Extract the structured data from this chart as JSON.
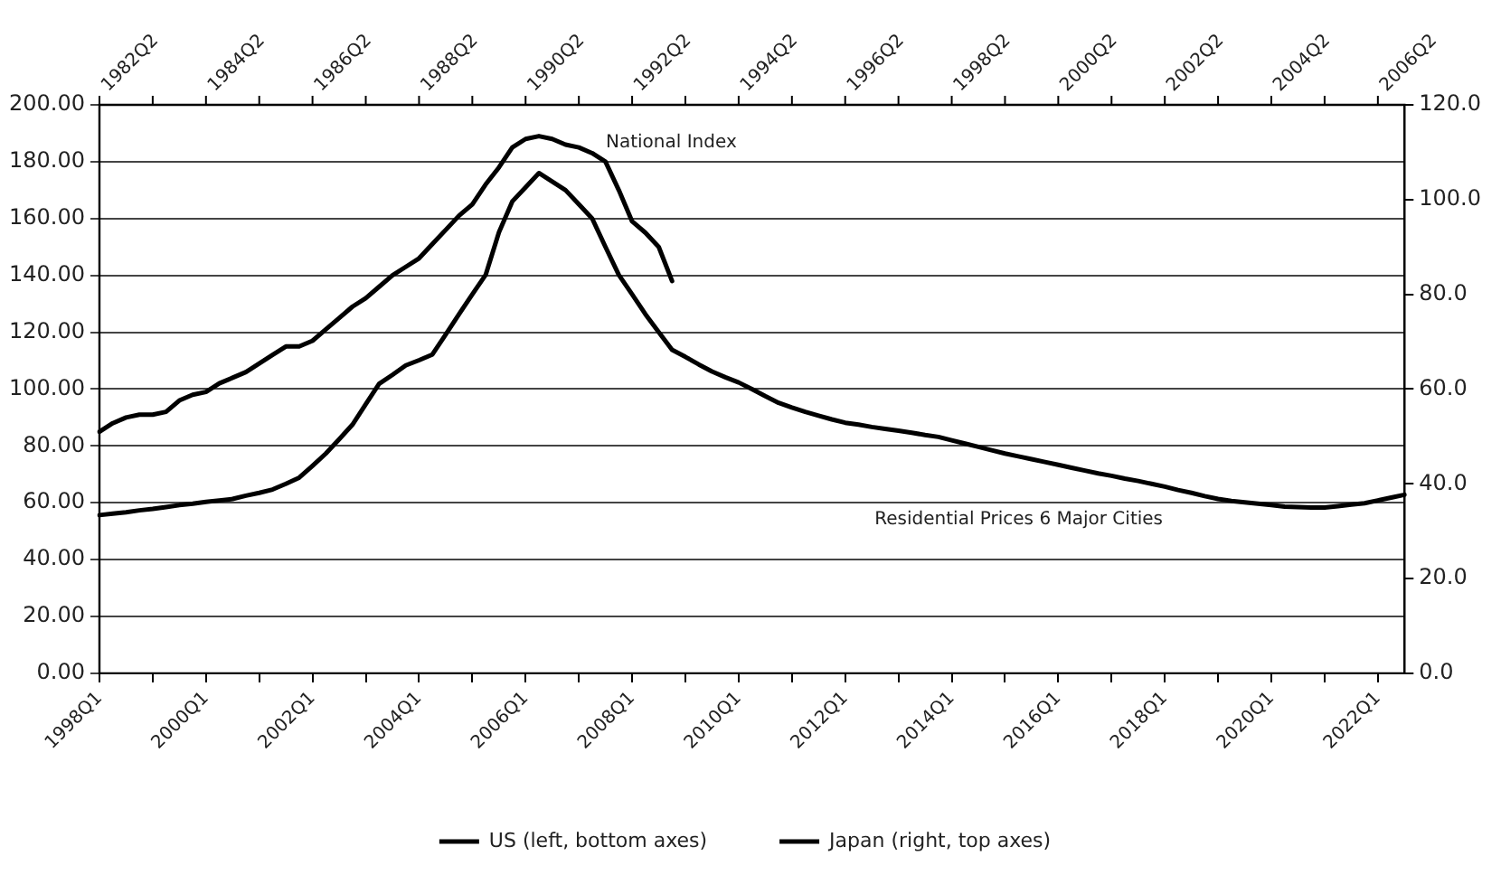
{
  "chart_data": {
    "type": "line",
    "grid": "y",
    "legend": "bottom",
    "marker": "none",
    "line_style": "solid",
    "categories": [
      "1998Q1",
      null,
      null,
      null,
      null,
      null,
      null,
      null,
      "2000Q1",
      null,
      null,
      null,
      null,
      null,
      null,
      null,
      "2002Q1",
      null,
      null,
      null,
      null,
      null,
      null,
      null,
      "2004Q1",
      null,
      null,
      null,
      null,
      null,
      null,
      null,
      "2006Q1",
      null,
      null,
      null,
      null,
      null,
      null,
      null,
      "2008Q1",
      null,
      null,
      null,
      null,
      null,
      null,
      null,
      "2010Q1",
      null,
      null,
      null,
      null,
      null,
      null,
      null,
      "2012Q1",
      null,
      null,
      null,
      null,
      null,
      null,
      null,
      "2014Q1",
      null,
      null,
      null,
      null,
      null,
      null,
      null,
      "2016Q1",
      null,
      null,
      null,
      null,
      null,
      null,
      null,
      "2018Q1",
      null,
      null,
      null,
      null,
      null,
      null,
      null,
      "2020Q1",
      null,
      null,
      null,
      null,
      null,
      null,
      null,
      "2022Q1",
      null,
      null
    ],
    "ylim": [
      0,
      200
    ],
    "yticks": [
      {
        "value": 0,
        "label": "0.00"
      },
      {
        "value": 20,
        "label": "20.00"
      },
      {
        "value": 40,
        "label": "40.00"
      },
      {
        "value": 60,
        "label": "60.00"
      },
      {
        "value": 80,
        "label": "80.00"
      },
      {
        "value": 100,
        "label": "100.00"
      },
      {
        "value": 120,
        "label": "120.00"
      },
      {
        "value": 140,
        "label": "140.00"
      },
      {
        "value": 160,
        "label": "160.00"
      },
      {
        "value": 180,
        "label": "180.00"
      },
      {
        "value": 200,
        "label": "200.00"
      }
    ],
    "y2lim": [
      0,
      120
    ],
    "y2ticks": [
      {
        "value": 0,
        "label": "0.0"
      },
      {
        "value": 20,
        "label": "20.0"
      },
      {
        "value": 40,
        "label": "40.0"
      },
      {
        "value": 60,
        "label": "60.0"
      },
      {
        "value": 80,
        "label": "80.0"
      },
      {
        "value": 100,
        "label": "100.0"
      },
      {
        "value": 120,
        "label": "120.0"
      }
    ],
    "series": [
      {
        "name": "US (left, bottom axes)",
        "color": "#000000",
        "values": [
          85,
          88,
          90,
          91,
          91,
          92,
          96,
          98,
          99,
          102,
          104,
          106,
          109,
          112,
          115,
          115,
          117,
          121,
          125,
          129,
          132,
          136,
          140,
          143,
          146,
          151,
          156,
          161,
          165,
          172,
          178,
          185,
          188,
          189,
          188,
          186,
          185,
          183,
          180,
          170,
          159,
          155,
          150,
          138,
          null,
          null,
          null,
          null,
          null,
          null,
          null,
          null,
          null,
          null,
          null,
          null,
          null,
          null,
          null,
          null,
          null,
          null,
          null,
          null,
          null,
          null,
          null,
          null,
          null,
          null,
          null,
          null,
          null,
          null,
          null,
          null,
          null,
          null,
          null,
          null,
          null,
          null,
          null,
          null,
          null,
          null,
          null,
          null,
          null,
          null,
          null,
          null,
          null,
          null,
          null,
          null,
          null,
          null,
          null
        ]
      },
      {
        "name": "Japan (right, top axes)",
        "color": "#000000",
        "axis": "y2",
        "values": [
          33.4,
          33.7,
          34.0,
          34.4,
          34.7,
          35.1,
          35.5,
          35.8,
          36.2,
          36.5,
          36.8,
          37.5,
          38.1,
          38.8,
          40.0,
          41.3,
          43.8,
          46.4,
          49.4,
          52.5,
          56.8,
          61.1,
          63.0,
          65.0,
          66.1,
          67.3,
          71.5,
          75.8,
          80.0,
          84.1,
          93.1,
          99.6,
          102.6,
          105.6,
          103.8,
          102.0,
          99.0,
          96.0,
          90.0,
          84.1,
          80.0,
          75.8,
          72.0,
          68.3,
          66.8,
          65.2,
          63.7,
          62.5,
          61.4,
          60.0,
          58.5,
          57.1,
          56.1,
          55.2,
          54.4,
          53.6,
          52.9,
          52.5,
          52.0,
          51.6,
          51.2,
          50.8,
          50.3,
          49.9,
          49.2,
          48.5,
          47.8,
          47.1,
          46.4,
          45.8,
          45.2,
          44.6,
          44.0,
          43.4,
          42.8,
          42.2,
          41.7,
          41.1,
          40.6,
          40.0,
          39.4,
          38.7,
          38.1,
          37.4,
          36.8,
          36.4,
          36.1,
          35.8,
          35.5,
          35.2,
          35.1,
          35.0,
          35.0,
          35.3,
          35.6,
          35.9,
          36.5,
          37.1,
          37.7
        ]
      }
    ],
    "annotations": [
      "National Index",
      "Residential Prices 6 Major Cities",
      "1982Q2",
      "1984Q2",
      "1986Q2",
      "1988Q2",
      "1990Q2",
      "1992Q2",
      "1994Q2",
      "1996Q2",
      "1998Q2",
      "2000Q2",
      "2002Q2",
      "2004Q2",
      "2006Q2"
    ]
  }
}
